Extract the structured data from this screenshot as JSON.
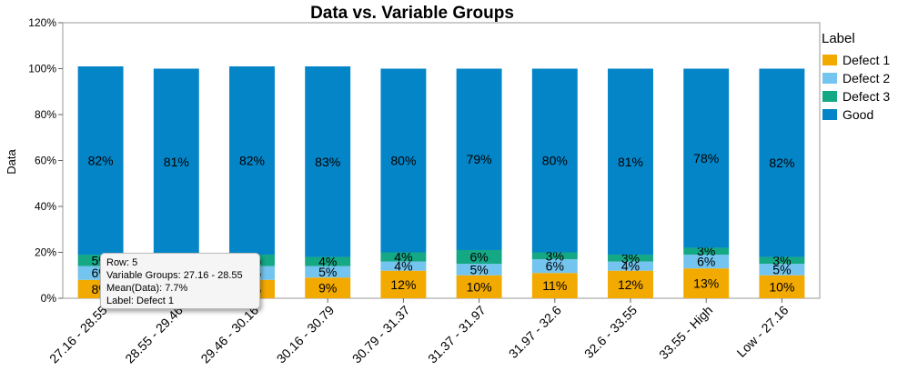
{
  "chart_data": {
    "type": "bar",
    "stacked": true,
    "title": "Data vs. Variable Groups",
    "xlabel": "",
    "ylabel": "Data",
    "ylim": [
      0,
      120
    ],
    "yticks": [
      "0%",
      "20%",
      "40%",
      "60%",
      "80%",
      "100%",
      "120%"
    ],
    "grid": false,
    "legend_title": "Label",
    "legend_position": "right",
    "categories": [
      "27.16 - 28.55",
      "28.55 - 29.46",
      "29.46 - 30.16",
      "30.16 - 30.79",
      "30.79 - 31.37",
      "31.37 - 31.97",
      "31.97 - 32.6",
      "32.6 - 33.55",
      "33.55 - High",
      "Low - 27.16"
    ],
    "series": [
      {
        "name": "Defect 1",
        "color": "#f2a900",
        "values": [
          8,
          8,
          8,
          9,
          12,
          10,
          11,
          12,
          13,
          10
        ],
        "labels": [
          "8%",
          "8%",
          "8%",
          "9%",
          "12%",
          "10%",
          "11%",
          "12%",
          "13%",
          "10%"
        ]
      },
      {
        "name": "Defect 2",
        "color": "#73c4ee",
        "values": [
          6,
          6,
          6,
          5,
          4,
          5,
          6,
          4,
          6,
          5
        ],
        "labels": [
          "6%",
          "6%",
          "6%",
          "5%",
          "4%",
          "5%",
          "6%",
          "4%",
          "6%",
          "5%"
        ]
      },
      {
        "name": "Defect 3",
        "color": "#14a885",
        "values": [
          5,
          5,
          5,
          4,
          4,
          6,
          3,
          3,
          3,
          3
        ],
        "labels": [
          "5%",
          "5%",
          "5%",
          "4%",
          "4%",
          "6%",
          "3%",
          "3%",
          "3%",
          "3%"
        ]
      },
      {
        "name": "Good",
        "color": "#0485c7",
        "values": [
          82,
          81,
          82,
          83,
          80,
          79,
          80,
          81,
          78,
          82
        ],
        "labels": [
          "82%",
          "81%",
          "82%",
          "83%",
          "80%",
          "79%",
          "80%",
          "81%",
          "78%",
          "82%"
        ]
      }
    ],
    "tooltip": {
      "row": "Row: 5",
      "group": "Variable Groups: 27.16 - 28.55",
      "mean": "Mean(Data): 7.7%",
      "label": "Label: Defect 1"
    }
  }
}
